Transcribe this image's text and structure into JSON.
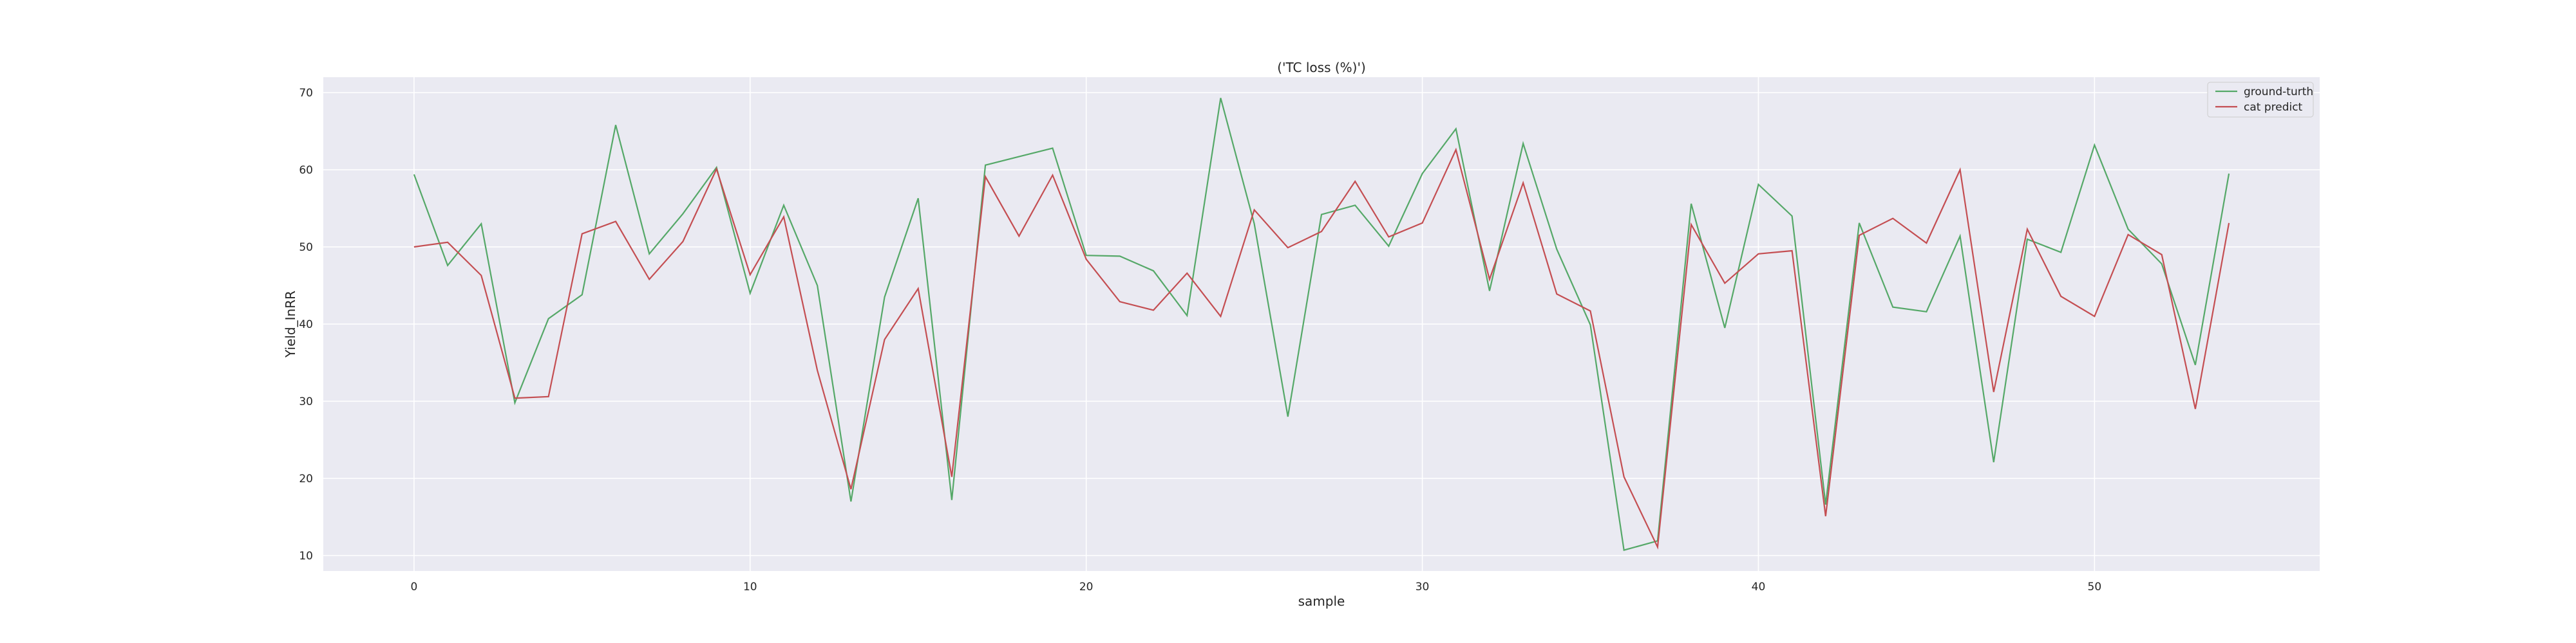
{
  "chart_data": {
    "type": "line",
    "title": "('TC loss (%)')",
    "xlabel": "sample",
    "ylabel": "Yield_InRR",
    "xlim": [
      -2.7,
      56.7
    ],
    "ylim": [
      8,
      72
    ],
    "xticks": [
      0,
      10,
      20,
      30,
      40,
      50
    ],
    "yticks": [
      10,
      20,
      30,
      40,
      50,
      60,
      70
    ],
    "grid": true,
    "legend_position": "top-right",
    "series": [
      {
        "name": "ground-turth",
        "color": "#55a868",
        "values": [
          59.4,
          47.6,
          53.0,
          29.8,
          40.7,
          43.8,
          65.8,
          49.1,
          54.3,
          60.3,
          44.0,
          55.4,
          45.0,
          17.0,
          43.5,
          56.3,
          17.2,
          60.6,
          61.7,
          62.8,
          48.9,
          48.8,
          46.9,
          41.1,
          69.3,
          53.0,
          28.0,
          54.2,
          55.4,
          50.1,
          59.5,
          65.3,
          44.3,
          63.4,
          49.7,
          39.9,
          10.7,
          11.9,
          55.6,
          39.5,
          58.1,
          54.0,
          16.6,
          53.1,
          42.2,
          41.6,
          51.4,
          22.1,
          51.0,
          49.3,
          63.2,
          52.3,
          47.8,
          34.7,
          59.5
        ]
      },
      {
        "name": "cat predict",
        "color": "#c44e52",
        "values": [
          50.0,
          50.6,
          46.3,
          30.4,
          30.6,
          51.7,
          53.3,
          45.8,
          50.7,
          60.1,
          46.4,
          53.9,
          34.0,
          18.6,
          38.0,
          44.6,
          20.2,
          59.1,
          51.4,
          59.3,
          48.4,
          42.9,
          41.8,
          46.6,
          41.0,
          54.8,
          49.9,
          52.0,
          58.5,
          51.3,
          53.1,
          62.6,
          45.8,
          58.3,
          43.9,
          41.7,
          20.2,
          11.1,
          52.9,
          45.3,
          49.1,
          49.5,
          15.1,
          51.5,
          53.7,
          50.5,
          60.0,
          31.2,
          52.3,
          43.6,
          41.0,
          51.6,
          49.0,
          29.0,
          53.1
        ]
      }
    ]
  }
}
